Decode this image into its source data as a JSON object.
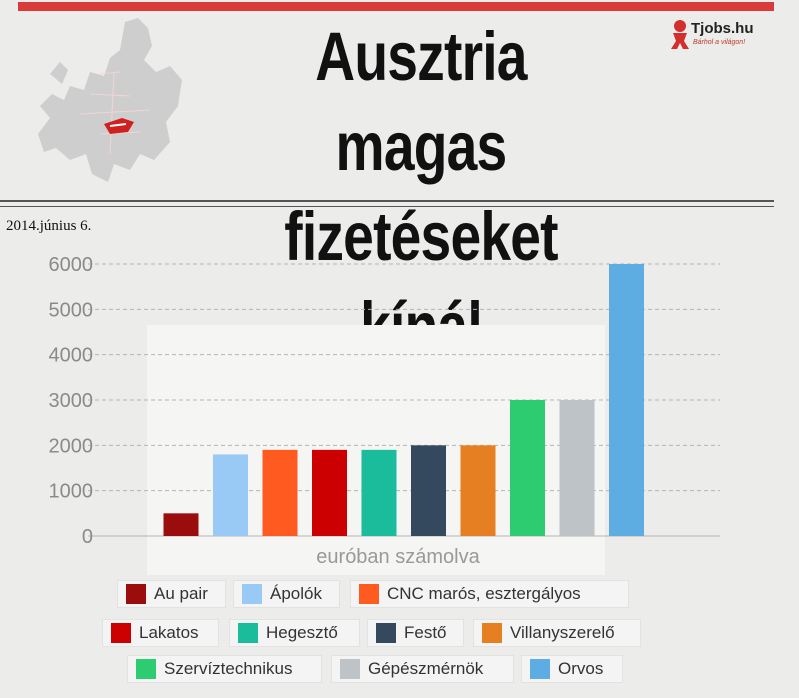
{
  "header": {
    "title_line1": "Ausztria magas",
    "title_line2": "fizetéseket kínál",
    "brand_name": "Tjobs.hu",
    "brand_tagline": "Bárhol a világon!",
    "date": "2014.június 6.",
    "accent_color": "#d93a3a"
  },
  "chart_data": {
    "type": "bar",
    "title": "",
    "xlabel": "euróban számolva",
    "ylabel": "",
    "ylim": [
      0,
      6000
    ],
    "yticks": [
      0,
      1000,
      2000,
      3000,
      4000,
      5000,
      6000
    ],
    "grid": true,
    "legend_position": "bottom",
    "categories": [
      "Au pair",
      "Ápolók",
      "CNC marós, esztergályos",
      "Lakatos",
      "Hegesztő",
      "Festő",
      "Villanyszerelő",
      "Szervíztechnikus",
      "Gépészmérnök",
      "Orvos"
    ],
    "values": [
      500,
      1800,
      1900,
      1900,
      1900,
      2000,
      2000,
      3000,
      3000,
      6000
    ],
    "colors": [
      "#9b0c0c",
      "#99c9f5",
      "#ff5a1f",
      "#cc0000",
      "#1abc9c",
      "#34495e",
      "#e67e22",
      "#2ecc71",
      "#bdc3c7",
      "#5dade2"
    ]
  }
}
